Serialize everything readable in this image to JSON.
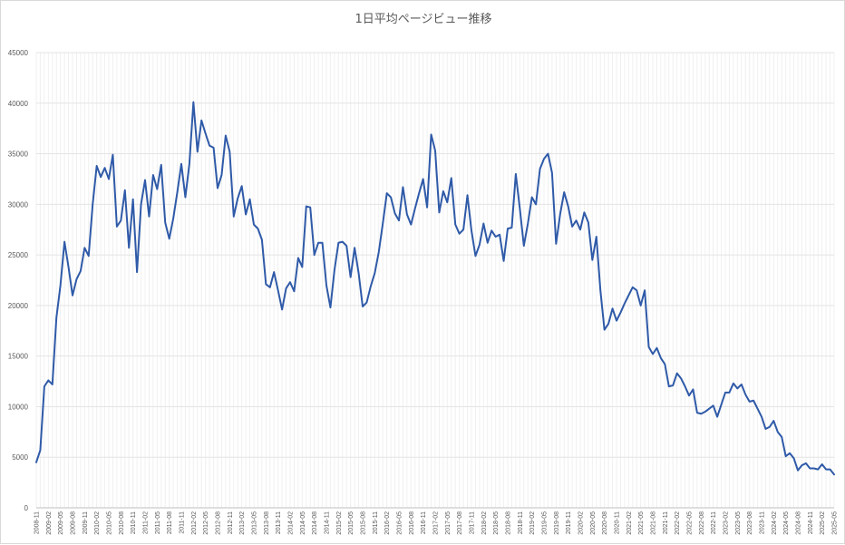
{
  "chart_data": {
    "type": "line",
    "title": "1日平均ページビュー推移",
    "xlabel": "",
    "ylabel": "",
    "ylim": [
      0,
      45000
    ],
    "y_ticks": [
      "0",
      "5000",
      "10000",
      "15000",
      "20000",
      "25000",
      "30000",
      "35000",
      "40000",
      "45000"
    ],
    "grid": true,
    "x_start": "2008-11",
    "x_tick_labels": [
      "2008-11",
      "2009-02",
      "2009-05",
      "2009-08",
      "2009-11",
      "2010-02",
      "2010-05",
      "2010-08",
      "2010-11",
      "2011-02",
      "2011-05",
      "2011-08",
      "2011-11",
      "2012-02",
      "2012-05",
      "2012-08",
      "2012-11",
      "2013-02",
      "2013-05",
      "2013-08",
      "2013-11",
      "2014-02",
      "2014-05",
      "2014-08",
      "2014-11",
      "2015-02",
      "2015-05",
      "2015-08",
      "2015-11",
      "2016-02",
      "2016-05",
      "2016-08",
      "2016-11",
      "2017-02",
      "2017-05",
      "2017-08",
      "2017-11",
      "2018-02",
      "2018-05",
      "2018-08",
      "2018-11",
      "2019-02",
      "2019-05",
      "2019-08",
      "2019-11",
      "2020-02",
      "2020-05",
      "2020-08",
      "2020-11",
      "2021-02",
      "2021-05",
      "2021-08",
      "2021-11",
      "2022-02",
      "2022-05",
      "2022-08",
      "2022-11",
      "2023-02",
      "2023-05",
      "2023-08",
      "2023-11",
      "2024-02",
      "2024-05",
      "2024-08",
      "2024-11",
      "2025-02",
      "2025-05"
    ],
    "series": [
      {
        "color": "#2f5aa8",
        "values": [
          4500,
          5700,
          12000,
          12600,
          12200,
          18800,
          22000,
          26300,
          23800,
          21000,
          22600,
          23400,
          25700,
          24900,
          30000,
          33800,
          32700,
          33600,
          32500,
          34900,
          27800,
          28400,
          31400,
          25700,
          30500,
          23300,
          30000,
          32400,
          28800,
          32900,
          31500,
          33900,
          28200,
          26600,
          28600,
          31200,
          34000,
          30700,
          34000,
          40100,
          35200,
          38300,
          37000,
          35800,
          35600,
          31600,
          32900,
          36800,
          35200,
          28800,
          30600,
          31800,
          29000,
          30500,
          28000,
          27600,
          26500,
          22100,
          21800,
          23300,
          21500,
          19600,
          21700,
          22300,
          21400,
          24700,
          23800,
          29800,
          29700,
          25000,
          26200,
          26200,
          22000,
          19800,
          23500,
          26200,
          26300,
          25900,
          22800,
          25700,
          23200,
          19900,
          20300,
          21900,
          23200,
          25300,
          28100,
          31100,
          30700,
          29100,
          28400,
          31700,
          29000,
          28000,
          29600,
          31100,
          32500,
          29700,
          36900,
          35300,
          29200,
          31300,
          30200,
          32600,
          28000,
          27100,
          27500,
          30900,
          27400,
          24900,
          26000,
          28100,
          26200,
          27400,
          26800,
          27000,
          24400,
          27600,
          27700,
          33000,
          29600,
          25900,
          28100,
          30700,
          30000,
          33500,
          34500,
          35000,
          33100,
          26100,
          29000,
          31200,
          29800,
          27800,
          28400,
          27500,
          29200,
          28200,
          24500,
          26800,
          21500,
          17600,
          18200,
          19700,
          18500,
          19300,
          20200,
          21000,
          21800,
          21500,
          20000,
          21500,
          15900,
          15200,
          15800,
          14800,
          14200,
          12000,
          12100,
          13300,
          12800,
          12000,
          11100,
          11700,
          9400,
          9300,
          9500,
          9800,
          10100,
          9000,
          10200,
          11400,
          11400,
          12300,
          11800,
          12200,
          11200,
          10500,
          10600,
          9800,
          9000,
          7800,
          8000,
          8600,
          7500,
          7000,
          5100,
          5400,
          4900,
          3700,
          4200,
          4400,
          3900,
          3900,
          3800,
          4300,
          3800,
          3800,
          3300
        ]
      }
    ]
  }
}
